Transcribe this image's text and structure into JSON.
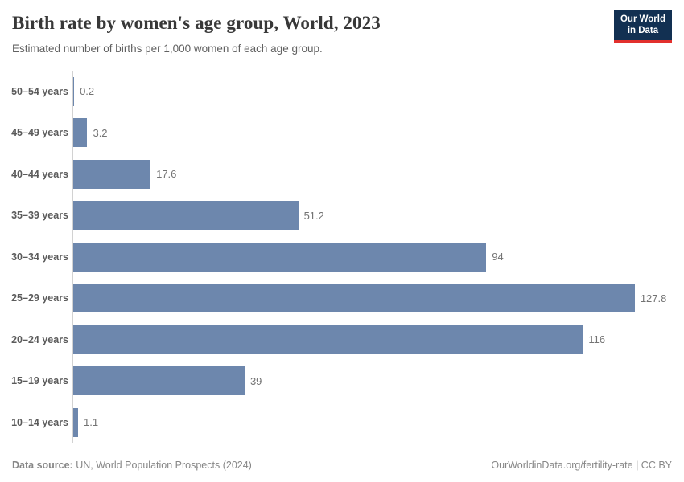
{
  "header": {
    "title": "Birth rate by women's age group, World, 2023",
    "subtitle": "Estimated number of births per 1,000 women of each age group.",
    "logo": {
      "line1": "Our World",
      "line2": "in Data"
    }
  },
  "chart_data": {
    "type": "bar",
    "orientation": "horizontal",
    "title": "Birth rate by women's age group, World, 2023",
    "subtitle": "Estimated number of births per 1,000 women of each age group.",
    "categories": [
      "50–54 years",
      "45–49 years",
      "40–44 years",
      "35–39 years",
      "30–34 years",
      "25–29 years",
      "20–24 years",
      "15–19 years",
      "10–14 years"
    ],
    "values": [
      0.2,
      3.2,
      17.6,
      51.2,
      94,
      127.8,
      116,
      39,
      1.1
    ],
    "xlabel": "",
    "ylabel": "",
    "xlim": [
      0,
      139
    ],
    "grid": false,
    "legend": false,
    "bar_color": "#6d87ad",
    "axis_color": "#d2d2d2"
  },
  "brand": {
    "logo_bg": "#123052",
    "logo_red": "#e2302d"
  },
  "footer": {
    "source_label": "Data source:",
    "source_text": "UN, World Population Prospects (2024)",
    "credit": "OurWorldinData.org/fertility-rate | CC BY"
  }
}
